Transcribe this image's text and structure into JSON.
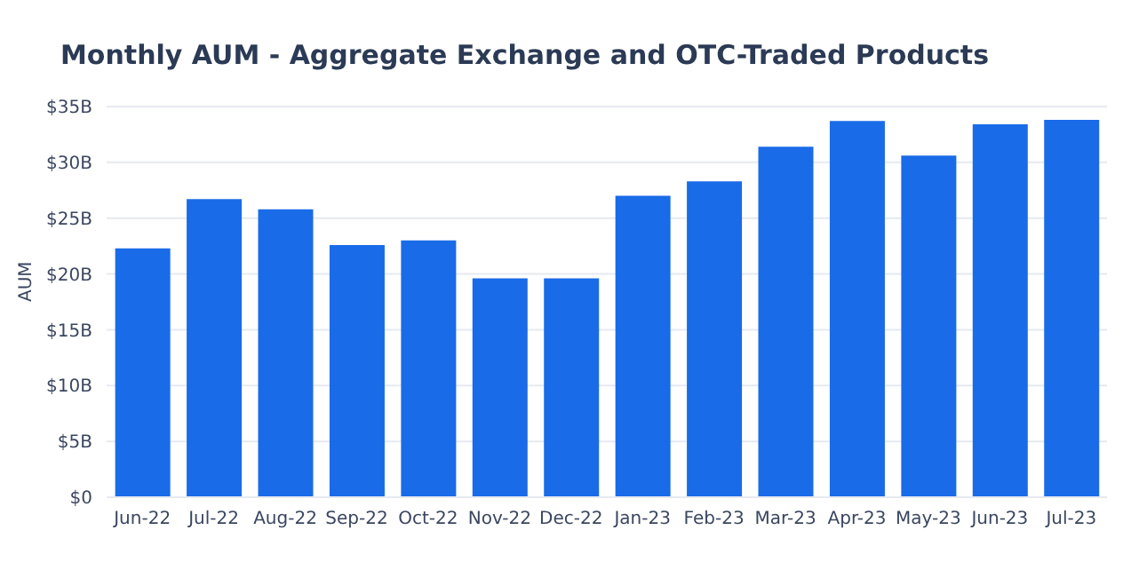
{
  "chart_data": {
    "type": "bar",
    "title": "Monthly AUM - Aggregate Exchange and OTC-Traded Products",
    "ylabel": "AUM",
    "categories": [
      "Jun-22",
      "Jul-22",
      "Aug-22",
      "Sep-22",
      "Oct-22",
      "Nov-22",
      "Dec-22",
      "Jan-23",
      "Feb-23",
      "Mar-23",
      "Apr-23",
      "May-23",
      "Jun-23",
      "Jul-23"
    ],
    "values": [
      22.3,
      26.7,
      25.8,
      22.6,
      23.0,
      19.6,
      19.6,
      27.0,
      28.3,
      31.4,
      33.7,
      30.6,
      33.4,
      33.8
    ],
    "color": "#1a6be8",
    "ylim": [
      0,
      35
    ],
    "yticks": [
      {
        "value": 0,
        "label": "$0"
      },
      {
        "value": 5,
        "label": "$5B"
      },
      {
        "value": 10,
        "label": "$10B"
      },
      {
        "value": 15,
        "label": "$15B"
      },
      {
        "value": 20,
        "label": "$20B"
      },
      {
        "value": 25,
        "label": "$25B"
      },
      {
        "value": 30,
        "label": "$30B"
      },
      {
        "value": 35,
        "label": "$35B"
      }
    ],
    "grid": "y"
  }
}
